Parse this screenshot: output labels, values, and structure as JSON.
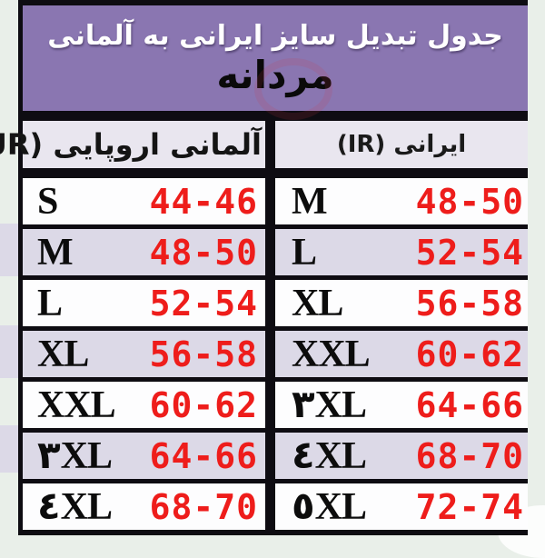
{
  "banner": {
    "title": "جدول تبدیل سایز ایرانی به آلمانی",
    "subtitle": "مردانه"
  },
  "chart_data": {
    "type": "table",
    "title": "جدول تبدیل سایز ایرانی به آلمانی",
    "subtitle": "مردانه",
    "columns": [
      "آلمانی اروپایی (EUR)",
      "ایرانی (IR)"
    ],
    "rows": [
      {
        "eur_size": "S",
        "eur_range": "44-46",
        "ir_size": "M",
        "ir_range": "48-50"
      },
      {
        "eur_size": "M",
        "eur_range": "48-50",
        "ir_size": "L",
        "ir_range": "52-54"
      },
      {
        "eur_size": "L",
        "eur_range": "52-54",
        "ir_size": "XL",
        "ir_range": "56-58"
      },
      {
        "eur_size": "XL",
        "eur_range": "56-58",
        "ir_size": "XXL",
        "ir_range": "60-62"
      },
      {
        "eur_size": "XXL",
        "eur_range": "60-62",
        "ir_size": "۳XL",
        "ir_range": "64-66"
      },
      {
        "eur_size": "۳XL",
        "eur_range": "64-66",
        "ir_size": "٤XL",
        "ir_range": "68-70"
      },
      {
        "eur_size": "٤XL",
        "eur_range": "68-70",
        "ir_size": "٥XL",
        "ir_range": "72-74"
      }
    ]
  },
  "colors": {
    "banner_purple": "#8a76b1",
    "border_black": "#0e0c12",
    "row_white": "#fdfdfe",
    "row_alt_lavender": "#dcd9e7",
    "header_bg": "#e9e6ef",
    "number_red": "#ee1d1b",
    "page_bg": "#e9efe9",
    "banner_title_text": "#ffffff",
    "banner_subtitle_text": "#0a0a0a"
  }
}
